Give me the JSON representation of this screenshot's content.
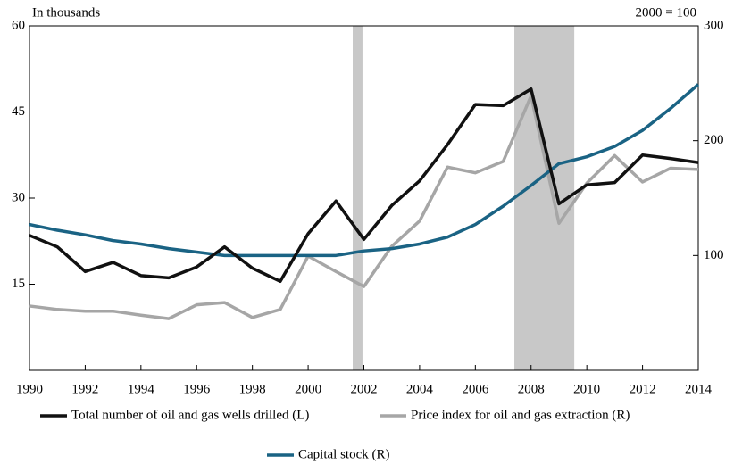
{
  "chart_data": {
    "type": "line",
    "ylabel": "In thousands",
    "y2label": "2000 = 100",
    "x": [
      1990,
      1991,
      1992,
      1993,
      1994,
      1995,
      1996,
      1997,
      1998,
      1999,
      2000,
      2001,
      2002,
      2003,
      2004,
      2005,
      2006,
      2007,
      2008,
      2009,
      2010,
      2011,
      2012,
      2013,
      2014
    ],
    "xlim": [
      1990,
      2014
    ],
    "xticks": [
      1990,
      1992,
      1994,
      1996,
      1998,
      2000,
      2002,
      2004,
      2006,
      2008,
      2010,
      2012,
      2014
    ],
    "ylim": [
      0,
      60
    ],
    "yticks": [
      15,
      30,
      45,
      60
    ],
    "y2lim": [
      0,
      300
    ],
    "y2ticks": [
      100,
      200,
      300
    ],
    "recessions": [
      [
        2001.6,
        2001.95
      ],
      [
        2007.4,
        2009.55
      ]
    ],
    "recession_color": "#c8c8c8",
    "series": [
      {
        "name": "Total number of oil and gas wells drilled (L)",
        "color": "#111111",
        "axis": "y",
        "values": [
          23.5,
          21.5,
          17.2,
          18.8,
          16.5,
          16.1,
          18.0,
          21.5,
          17.8,
          15.5,
          23.8,
          29.5,
          22.8,
          28.7,
          33.0,
          39.3,
          46.3,
          46.1,
          49.0,
          29.0,
          32.3,
          32.7,
          37.5,
          36.9,
          36.2
        ]
      },
      {
        "name": "Price index for oil and gas extraction (R)",
        "color": "#a6a6a6",
        "axis": "y2",
        "values": [
          56,
          53,
          51.5,
          51.5,
          48,
          45,
          57,
          59,
          46,
          53,
          99.5,
          86,
          73,
          108,
          130,
          177,
          172,
          182,
          239,
          128,
          163,
          187,
          164,
          176,
          175
        ]
      },
      {
        "name": "Capital stock (R)",
        "color": "#1a6384",
        "axis": "y2",
        "values": [
          127,
          122,
          118,
          113,
          110,
          106,
          103,
          100,
          100,
          100,
          100,
          100,
          104,
          106,
          110,
          116,
          127,
          143,
          161,
          180,
          186,
          195,
          209,
          228,
          249
        ]
      }
    ]
  }
}
